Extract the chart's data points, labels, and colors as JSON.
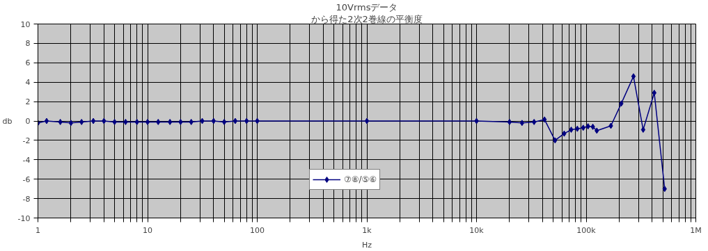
{
  "chart_data": {
    "type": "line",
    "title": "10Vrmsデータ",
    "subtitle": "から得た2次2巻線の平衡度",
    "xlabel": "Hz",
    "ylabel": "db",
    "x": [
      1,
      1.2,
      1.6,
      2,
      2.5,
      3.2,
      4,
      5,
      6.3,
      8,
      10,
      12.5,
      16,
      20,
      25,
      31.5,
      40,
      50,
      63,
      80,
      100,
      1000,
      10000,
      20000,
      26000,
      33500,
      41700,
      52000,
      63000,
      73000,
      83000,
      94000,
      104000,
      115000,
      125000,
      168000,
      209000,
      270000,
      331000,
      418000,
      520000
    ],
    "series": [
      {
        "name": "⑦⑧/⑤⑥",
        "color": "#000080",
        "values": [
          -0.2,
          0,
          -0.1,
          -0.2,
          -0.1,
          0,
          0,
          -0.1,
          -0.1,
          -0.1,
          -0.1,
          -0.1,
          -0.1,
          -0.1,
          -0.1,
          0,
          0,
          -0.1,
          0,
          0,
          0,
          0,
          0,
          -0.1,
          -0.2,
          -0.1,
          0.15,
          -2.0,
          -1.3,
          -0.9,
          -0.8,
          -0.7,
          -0.55,
          -0.6,
          -1.0,
          -0.5,
          1.8,
          4.6,
          -0.9,
          2.9,
          -7.0
        ]
      }
    ],
    "xlim": [
      1,
      1000000
    ],
    "ylim": [
      -10,
      10
    ],
    "xticks": [
      1,
      {
        "value": 2,
        "label": null
      },
      {
        "value": 3,
        "label": null
      },
      {
        "value": 4,
        "label": null
      },
      {
        "value": 5,
        "label": null
      },
      {
        "value": 6,
        "label": null
      },
      {
        "value": 7,
        "label": null
      },
      {
        "value": 8,
        "label": null
      },
      {
        "value": 9,
        "label": null
      },
      10,
      {
        "value": 20,
        "label": null
      },
      {
        "value": 30,
        "label": null
      },
      {
        "value": 40,
        "label": null
      },
      {
        "value": 50,
        "label": null
      },
      {
        "value": 60,
        "label": null
      },
      {
        "value": 70,
        "label": null
      },
      {
        "value": 80,
        "label": null
      },
      {
        "value": 90,
        "label": null
      },
      100,
      {
        "value": 200,
        "label": null
      },
      {
        "value": 300,
        "label": null
      },
      {
        "value": 400,
        "label": null
      },
      {
        "value": 500,
        "label": null
      },
      {
        "value": 600,
        "label": null
      },
      {
        "value": 700,
        "label": null
      },
      {
        "value": 800,
        "label": null
      },
      {
        "value": 900,
        "label": null
      },
      {
        "value": 1000,
        "label": "1k"
      },
      {
        "value": 2000,
        "label": null
      },
      {
        "value": 3000,
        "label": null
      },
      {
        "value": 4000,
        "label": null
      },
      {
        "value": 5000,
        "label": null
      },
      {
        "value": 6000,
        "label": null
      },
      {
        "value": 7000,
        "label": null
      },
      {
        "value": 8000,
        "label": null
      },
      {
        "value": 9000,
        "label": null
      },
      {
        "value": 10000,
        "label": "10k"
      },
      {
        "value": 20000,
        "label": null
      },
      {
        "value": 30000,
        "label": null
      },
      {
        "value": 40000,
        "label": null
      },
      {
        "value": 50000,
        "label": null
      },
      {
        "value": 60000,
        "label": null
      },
      {
        "value": 70000,
        "label": null
      },
      {
        "value": 80000,
        "label": null
      },
      {
        "value": 90000,
        "label": null
      },
      {
        "value": 100000,
        "label": "100k"
      },
      {
        "value": 200000,
        "label": null
      },
      {
        "value": 300000,
        "label": null
      },
      {
        "value": 400000,
        "label": null
      },
      {
        "value": 500000,
        "label": null
      },
      {
        "value": 600000,
        "label": null
      },
      {
        "value": 700000,
        "label": null
      },
      {
        "value": 800000,
        "label": null
      },
      {
        "value": 900000,
        "label": null
      },
      {
        "value": 1000000,
        "label": "1M"
      }
    ],
    "yticks": [
      -10,
      -8,
      -6,
      -4,
      -2,
      0,
      2,
      4,
      6,
      8,
      10
    ],
    "log": "x",
    "grid": true,
    "legend": "bottom",
    "marker": "diamond",
    "line_style": "solid"
  }
}
